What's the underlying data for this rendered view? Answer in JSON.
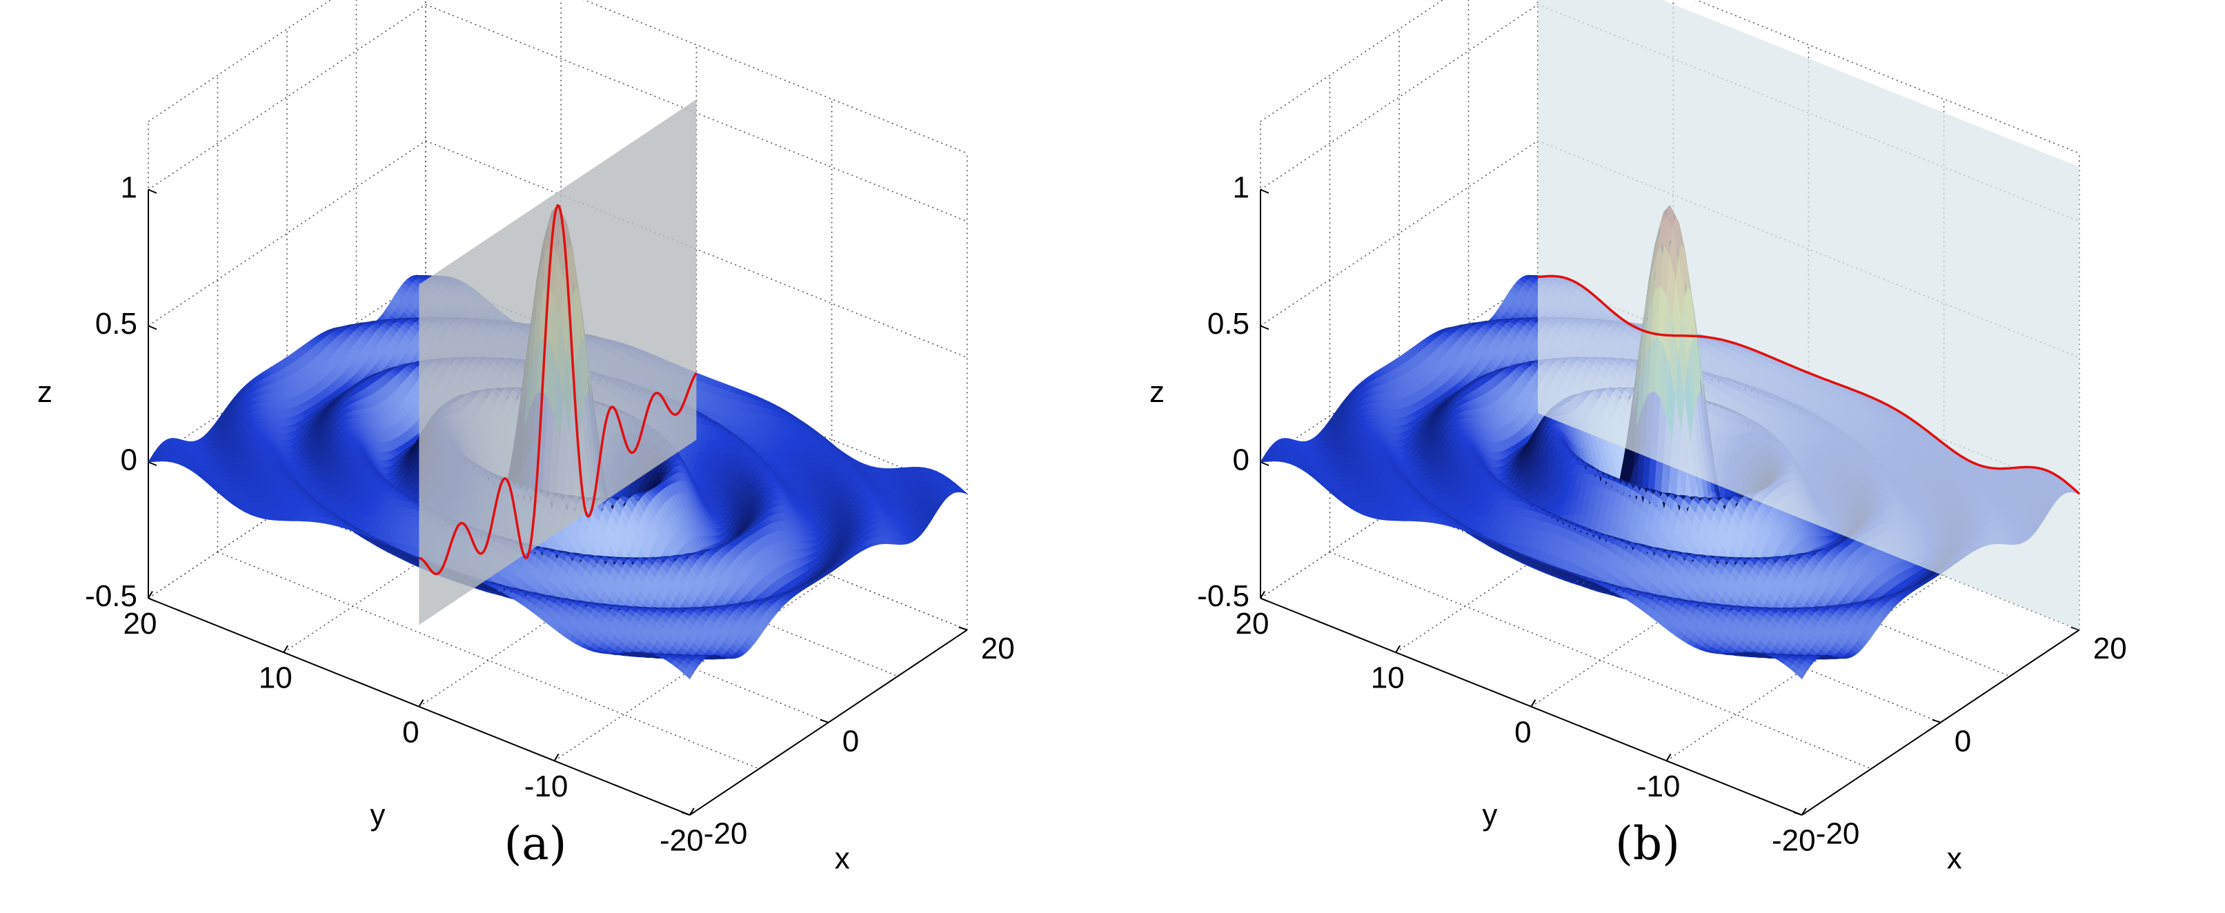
{
  "colors": {
    "grid": "#555555",
    "axis": "#000000",
    "surface_base": "#1e3fd6",
    "surface_highlight": "#cfe6ff",
    "peak_top": "#8a0f0f",
    "peak_mid": "#c8c22a",
    "peak_low": "#2aa1a6",
    "cut_line": "#e01010",
    "plane_a": "#b7bcbe",
    "plane_b": "#dbe6ea"
  },
  "chart_data": [
    {
      "type": "surface",
      "caption": "(a)",
      "xlabel": "x",
      "ylabel": "y",
      "zlabel": "z",
      "xlim": [
        -20,
        20
      ],
      "ylim": [
        -20,
        20
      ],
      "zlim": [
        -0.5,
        1
      ],
      "xticks": [
        "-20",
        "0",
        "20"
      ],
      "yticks": [
        "20",
        "10",
        "0",
        "-10",
        "-20"
      ],
      "zticks": [
        "1",
        "0.5",
        "0",
        "-0.5"
      ],
      "surface": "radially symmetric damped ripple with central peak z = 1 at (0, 0)",
      "cut_plane": {
        "orientation": "constant x",
        "style": "opaque grey",
        "x": 0
      },
      "grid": true
    },
    {
      "type": "surface",
      "caption": "(b)",
      "xlabel": "x",
      "ylabel": "y",
      "zlabel": "z",
      "xlim": [
        -20,
        20
      ],
      "ylim": [
        -20,
        20
      ],
      "zlim": [
        -0.5,
        1
      ],
      "xticks": [
        "-20",
        "0",
        "20"
      ],
      "yticks": [
        "20",
        "10",
        "0",
        "-10",
        "-20"
      ],
      "zticks": [
        "1",
        "0.5",
        "0",
        "-0.5"
      ],
      "surface": "radially symmetric damped ripple with central peak z = 1 at (0, 0)",
      "cut_plane": {
        "orientation": "constant y",
        "style": "translucent light blue",
        "y": -20
      },
      "grid": true
    }
  ]
}
